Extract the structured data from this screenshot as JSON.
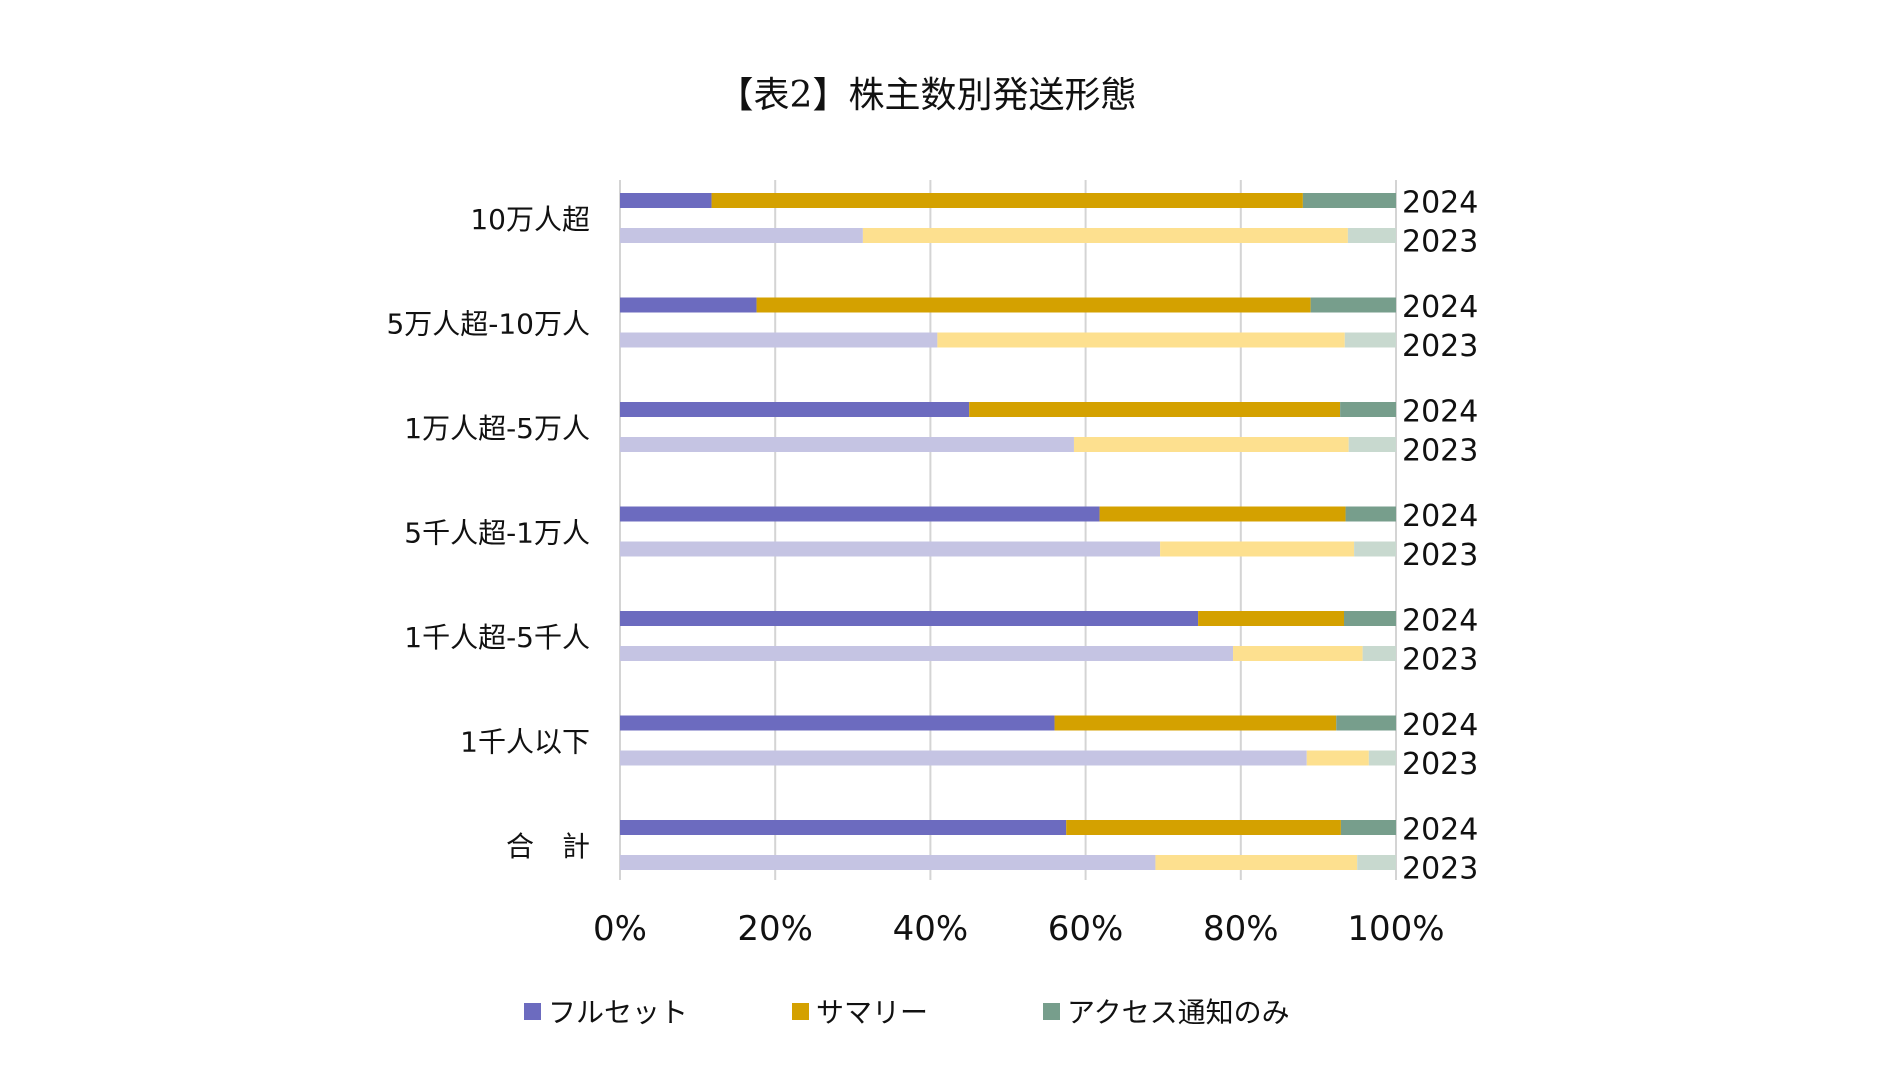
{
  "chart_data": {
    "type": "bar",
    "orientation": "horizontal",
    "stacked": "percent",
    "title": "【表2】株主数別発送形態",
    "categories": [
      "10万人超",
      "5万人超-10万人",
      "1万人超-5万人",
      "5千人超-1万人",
      "1千人超-5千人",
      "1千人以下",
      "合　計"
    ],
    "years": [
      "2024",
      "2023"
    ],
    "series": [
      {
        "name": "フルセット",
        "color_2024": "#6C6BBF",
        "color_2023": "#C5C4E3",
        "values_2024": [
          11.8,
          17.6,
          45.0,
          61.8,
          74.5,
          56.0,
          57.5
        ],
        "values_2023": [
          31.3,
          40.9,
          58.5,
          69.6,
          79.0,
          88.5,
          69.0
        ]
      },
      {
        "name": "サマリー",
        "color_2024": "#D4A100",
        "color_2023": "#FDE08F",
        "values_2024": [
          76.2,
          71.4,
          47.8,
          31.7,
          18.8,
          36.3,
          35.4
        ],
        "values_2023": [
          62.5,
          52.5,
          35.4,
          25.0,
          16.7,
          8.0,
          26.0
        ]
      },
      {
        "name": "アクセス通知のみ",
        "color_2024": "#779E8C",
        "color_2023": "#C8D9CF",
        "values_2024": [
          12.0,
          11.0,
          7.2,
          6.5,
          6.7,
          7.7,
          7.1
        ],
        "values_2023": [
          6.2,
          6.6,
          6.1,
          5.4,
          4.3,
          3.5,
          5.0
        ]
      }
    ],
    "xlim": [
      0,
      100
    ],
    "xticks": [
      "0%",
      "20%",
      "40%",
      "60%",
      "80%",
      "100%"
    ],
    "grid": true,
    "legend_position": "bottom"
  }
}
